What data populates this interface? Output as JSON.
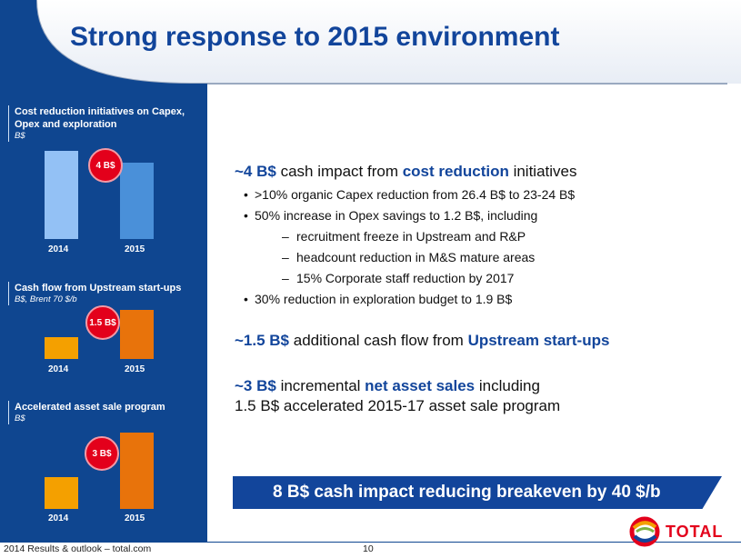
{
  "title": "Strong response to 2015 environment",
  "colors": {
    "brand_blue": "#12459b",
    "sidebar_blue": "#0f4690",
    "badge_red": "#e3001b",
    "bar_light_blue": "#93c1f5",
    "bar_blue": "#4a90d9",
    "bar_orange": "#f4a000",
    "bar_dark_orange": "#e8730b"
  },
  "chart_data": [
    {
      "type": "bar",
      "title": "Cost reduction initiatives on Capex, Opex and exploration",
      "unit": "B$",
      "categories": [
        "2014",
        "2015"
      ],
      "values": [
        1.0,
        0.87
      ],
      "annotation": "4 B$"
    },
    {
      "type": "bar",
      "title": "Cash flow from Upstream start-ups",
      "unit": "B$, Brent 70 $/b",
      "categories": [
        "2014",
        "2015"
      ],
      "values": [
        0.45,
        1.0
      ],
      "annotation": "1.5 B$"
    },
    {
      "type": "bar",
      "title": "Accelerated asset sale program",
      "unit": "B$",
      "categories": [
        "2014",
        "2015"
      ],
      "values": [
        0.32,
        0.77
      ],
      "annotation": "3 B$"
    }
  ],
  "point1": {
    "amount": "~4 B$",
    "text1": " cash impact from ",
    "highlight": "cost reduction",
    "text2": " initiatives",
    "bullets": [
      ">10% organic Capex reduction from 26.4 B$ to 23-24 B$",
      "50% increase in Opex savings to 1.2 B$, including"
    ],
    "sub_bullets": [
      "recruitment freeze in Upstream and R&P",
      "headcount reduction in M&S mature areas",
      "15% Corporate staff reduction by 2017"
    ],
    "bullet_last": "30% reduction in exploration budget to 1.9 B$"
  },
  "point2": {
    "amount": "~1.5 B$",
    "text1": " additional cash flow from ",
    "highlight": "Upstream start-ups"
  },
  "point3": {
    "amount": "~3 B$",
    "text1": " incremental ",
    "highlight": "net asset sales",
    "text2": " including",
    "line2": "1.5 B$ accelerated 2015-17 asset sale program"
  },
  "banner": "8 B$ cash impact reducing breakeven by 40 $/b",
  "footer": "2014 Results & outlook – total.com",
  "page_number": "10",
  "logo_text": "TOTAL"
}
